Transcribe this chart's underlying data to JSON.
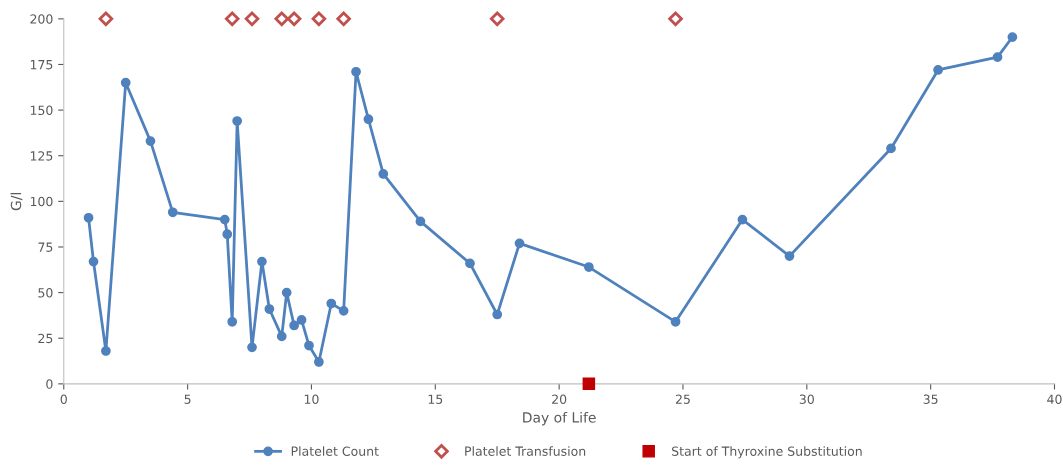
{
  "chart_data": {
    "type": "line",
    "xlabel": "Day of Life",
    "ylabel": "G/l",
    "xlim": [
      0,
      40
    ],
    "xticks": [
      0,
      5,
      10,
      15,
      20,
      25,
      30,
      35,
      40
    ],
    "ylim": [
      0,
      200
    ],
    "yticks": [
      0,
      25,
      50,
      75,
      100,
      125,
      150,
      175,
      200
    ],
    "grid": false,
    "legend": "bottom",
    "series": [
      {
        "name": "Platelet Count",
        "marker": "circle",
        "color": "#4f81bd",
        "x": [
          1.0,
          1.2,
          1.7,
          2.5,
          3.5,
          4.4,
          6.5,
          6.6,
          6.8,
          7.0,
          7.6,
          8.0,
          8.3,
          8.8,
          9.0,
          9.3,
          9.6,
          9.9,
          10.3,
          10.8,
          11.3,
          11.8,
          12.3,
          12.9,
          14.4,
          16.4,
          17.5,
          18.4,
          21.2,
          24.7,
          27.4,
          29.3,
          33.4,
          35.3,
          37.7,
          38.3
        ],
        "values": [
          91,
          67,
          18,
          165,
          133,
          94,
          90,
          82,
          34,
          144,
          20,
          67,
          41,
          26,
          50,
          32,
          35,
          21,
          12,
          44,
          40,
          171,
          145,
          115,
          89,
          66,
          38,
          77,
          64,
          34,
          90,
          70,
          129,
          172,
          179,
          190
        ]
      },
      {
        "name": "Platelet Transfusion",
        "type": "scatter",
        "marker": "diamond",
        "color": "#c0504d",
        "x": [
          1.7,
          6.8,
          7.6,
          8.8,
          9.3,
          10.3,
          11.3,
          17.5,
          24.7
        ],
        "values": [
          200,
          200,
          200,
          200,
          200,
          200,
          200,
          200,
          200
        ]
      },
      {
        "name": "Start of Thyroxine Substitution",
        "type": "scatter",
        "marker": "square",
        "color": "#c00000",
        "x": [
          21.2
        ],
        "values": [
          0
        ]
      }
    ]
  }
}
